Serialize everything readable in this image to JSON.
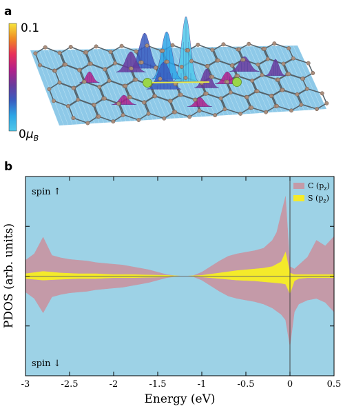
{
  "panel_a": {
    "label": "a",
    "colorbar": {
      "max_label": "0.1",
      "min_label": "0",
      "min_unit": "μ",
      "min_unit_sub": "B",
      "colors": [
        "#f7e43a",
        "#f08a24",
        "#e8305a",
        "#b3208a",
        "#6a3a9c",
        "#3a5cc0",
        "#2ea6e6",
        "#4fc8ea"
      ]
    },
    "colors": {
      "sheet": "#8ec9e8",
      "bond": "#55636b",
      "atom": "#a98d7c",
      "dopant": "#9ad64a"
    }
  },
  "chart_data": {
    "type": "area",
    "panel_label": "b",
    "xlabel": "Energy (eV)",
    "ylabel": "PDOS (arb. units)",
    "xlim": [
      -3,
      0.5
    ],
    "ylim": [
      -1,
      1
    ],
    "xticks": [
      -3,
      -2.5,
      -2,
      -1.5,
      -1,
      -0.5,
      0,
      0.5
    ],
    "xtick_labels": [
      "-3",
      "-2.5",
      "-2",
      "-1.5",
      "-1",
      "-0.5",
      "0",
      "0.5"
    ],
    "annotations": {
      "spin_up": "spin ↑",
      "spin_down": "spin ↓"
    },
    "vline_x": 0,
    "legend_position": "top-right",
    "background": "#9dd2e6",
    "series": [
      {
        "name": "C (p",
        "name_sub": "z",
        "name_close": ")",
        "color": "#c49aa8",
        "x": [
          -3.0,
          -2.9,
          -2.8,
          -2.7,
          -2.6,
          -2.5,
          -2.4,
          -2.3,
          -2.2,
          -2.1,
          -2.0,
          -1.9,
          -1.8,
          -1.7,
          -1.6,
          -1.5,
          -1.4,
          -1.3,
          -1.2,
          -1.1,
          -1.0,
          -0.9,
          -0.8,
          -0.7,
          -0.6,
          -0.5,
          -0.4,
          -0.3,
          -0.2,
          -0.15,
          -0.1,
          -0.05,
          0.0,
          0.05,
          0.1,
          0.2,
          0.3,
          0.4,
          0.5
        ],
        "up": [
          0.2,
          0.28,
          0.49,
          0.26,
          0.23,
          0.21,
          0.2,
          0.19,
          0.17,
          0.16,
          0.15,
          0.14,
          0.12,
          0.1,
          0.08,
          0.05,
          0.02,
          0.005,
          0.0,
          0.005,
          0.05,
          0.12,
          0.19,
          0.25,
          0.28,
          0.3,
          0.32,
          0.35,
          0.45,
          0.55,
          0.78,
          1.0,
          0.12,
          0.09,
          0.14,
          0.24,
          0.45,
          0.38,
          0.5
        ],
        "down": [
          -0.2,
          -0.28,
          -0.46,
          -0.26,
          -0.23,
          -0.21,
          -0.2,
          -0.19,
          -0.17,
          -0.16,
          -0.15,
          -0.14,
          -0.12,
          -0.1,
          -0.08,
          -0.05,
          -0.02,
          -0.005,
          0.0,
          -0.005,
          -0.05,
          -0.12,
          -0.19,
          -0.25,
          -0.28,
          -0.3,
          -0.32,
          -0.35,
          -0.4,
          -0.44,
          -0.48,
          -0.55,
          -0.88,
          -0.45,
          -0.35,
          -0.3,
          -0.28,
          -0.33,
          -0.45
        ]
      },
      {
        "name": "S (p",
        "name_sub": "z",
        "name_close": ")",
        "color": "#f4ea2a",
        "x": [
          -3.0,
          -2.8,
          -2.6,
          -2.4,
          -2.2,
          -2.0,
          -1.8,
          -1.6,
          -1.4,
          -1.2,
          -1.0,
          -0.8,
          -0.6,
          -0.4,
          -0.3,
          -0.2,
          -0.1,
          -0.05,
          0.0,
          0.05,
          0.1,
          0.2,
          0.3,
          0.4,
          0.5
        ],
        "up": [
          0.03,
          0.06,
          0.04,
          0.03,
          0.03,
          0.02,
          0.02,
          0.015,
          0.01,
          0.0,
          0.01,
          0.04,
          0.07,
          0.09,
          0.1,
          0.12,
          0.18,
          0.3,
          0.04,
          0.02,
          0.02,
          0.02,
          0.02,
          0.02,
          0.02
        ],
        "down": [
          -0.03,
          -0.05,
          -0.04,
          -0.03,
          -0.03,
          -0.02,
          -0.02,
          -0.015,
          -0.01,
          0.0,
          -0.01,
          -0.03,
          -0.05,
          -0.06,
          -0.07,
          -0.08,
          -0.09,
          -0.1,
          -0.22,
          -0.06,
          -0.03,
          -0.02,
          -0.02,
          -0.02,
          -0.02
        ]
      }
    ]
  }
}
